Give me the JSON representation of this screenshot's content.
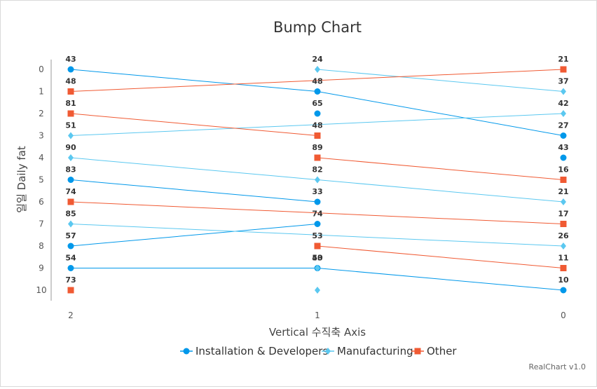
{
  "chart_data": {
    "type": "line",
    "title": "Bump Chart",
    "xlabel": "Vertical 수직축 Axis",
    "ylabel": "일일 Daily fat",
    "x_categories": [
      "2",
      "1",
      "0"
    ],
    "y_ticks": [
      "0",
      "1",
      "2",
      "3",
      "4",
      "5",
      "6",
      "7",
      "8",
      "9",
      "10"
    ],
    "y_reversed": true,
    "grid": false,
    "legend_position": "bottom",
    "series": [
      {
        "name": "Installation & Developers",
        "color": "#0098ea",
        "marker": "circle",
        "lines": [
          {
            "ranks": [
              0,
              1,
              3
            ],
            "labels": [
              "43",
              "48",
              "27"
            ]
          },
          {
            "ranks": [
              5,
              6,
              null
            ],
            "labels": [
              "83",
              "33",
              ""
            ]
          },
          {
            "ranks": [
              8,
              7,
              null
            ],
            "labels": [
              "57",
              "74",
              ""
            ]
          },
          {
            "ranks": [
              9,
              9,
              10
            ],
            "labels": [
              "54",
              "50",
              "10"
            ]
          },
          {
            "ranks": [
              null,
              2,
              null
            ],
            "labels": [
              "",
              "65",
              ""
            ]
          },
          {
            "ranks": [
              null,
              null,
              4
            ],
            "labels": [
              "",
              "",
              "43"
            ]
          }
        ]
      },
      {
        "name": "Manufacturing",
        "color": "#5bc8f0",
        "marker": "diamond",
        "lines": [
          {
            "ranks": [
              null,
              0,
              1
            ],
            "labels": [
              "",
              "24",
              "37"
            ]
          },
          {
            "ranks": [
              3,
              null,
              2
            ],
            "labels": [
              "51",
              "",
              "42"
            ]
          },
          {
            "ranks": [
              4,
              5,
              6
            ],
            "labels": [
              "90",
              "82",
              "21"
            ]
          },
          {
            "ranks": [
              7,
              null,
              8
            ],
            "labels": [
              "85",
              "",
              "26"
            ]
          },
          {
            "ranks": [
              null,
              9,
              null
            ],
            "labels": [
              "",
              "43",
              ""
            ]
          },
          {
            "ranks": [
              null,
              10,
              null
            ],
            "labels": [
              "",
              "",
              ""
            ]
          }
        ]
      },
      {
        "name": "Other",
        "color": "#f05a33",
        "marker": "square",
        "lines": [
          {
            "ranks": [
              1,
              null,
              0
            ],
            "labels": [
              "48",
              "",
              "21"
            ]
          },
          {
            "ranks": [
              2,
              3,
              null
            ],
            "labels": [
              "81",
              "48",
              ""
            ]
          },
          {
            "ranks": [
              null,
              4,
              5
            ],
            "labels": [
              "",
              "89",
              "16"
            ]
          },
          {
            "ranks": [
              6,
              null,
              7
            ],
            "labels": [
              "74",
              "",
              "17"
            ]
          },
          {
            "ranks": [
              null,
              8,
              9
            ],
            "labels": [
              "",
              "53",
              "11"
            ]
          },
          {
            "ranks": [
              10,
              null,
              null
            ],
            "labels": [
              "73",
              "",
              ""
            ]
          }
        ]
      }
    ],
    "credit": "RealChart v1.0"
  }
}
